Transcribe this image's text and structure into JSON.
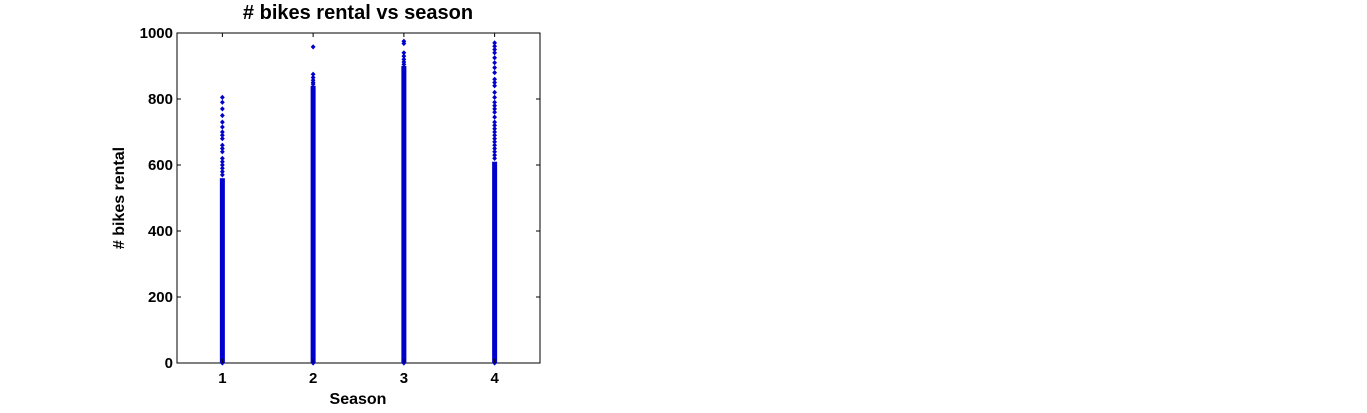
{
  "chart_data": {
    "type": "scatter",
    "title": "# bikes rental vs season",
    "xlabel": "Season",
    "ylabel": "# bikes rental",
    "xlim": [
      0.5,
      4.5
    ],
    "ylim": [
      0,
      1000
    ],
    "xticks": [
      "1",
      "2",
      "3",
      "4"
    ],
    "yticks": [
      "0",
      "200",
      "400",
      "600",
      "800",
      "1000"
    ],
    "grid": false,
    "marker_color": "#0000cc",
    "series": [
      {
        "x": 1,
        "dense_range": [
          0,
          560
        ],
        "points": [
          0,
          570,
          580,
          590,
          600,
          610,
          620,
          640,
          650,
          660,
          680,
          690,
          700,
          715,
          730,
          750,
          770,
          790,
          805
        ]
      },
      {
        "x": 2,
        "dense_range": [
          0,
          840
        ],
        "points": [
          0,
          845,
          850,
          857,
          865,
          875,
          958
        ]
      },
      {
        "x": 3,
        "dense_range": [
          0,
          900
        ],
        "points": [
          0,
          905,
          912,
          920,
          930,
          940,
          968,
          975
        ]
      },
      {
        "x": 4,
        "dense_range": [
          0,
          610
        ],
        "points": [
          0,
          620,
          630,
          640,
          650,
          660,
          670,
          680,
          690,
          700,
          710,
          720,
          730,
          745,
          760,
          770,
          780,
          790,
          805,
          820,
          840,
          850,
          860,
          880,
          895,
          910,
          925,
          940,
          950,
          960,
          970
        ]
      }
    ]
  }
}
